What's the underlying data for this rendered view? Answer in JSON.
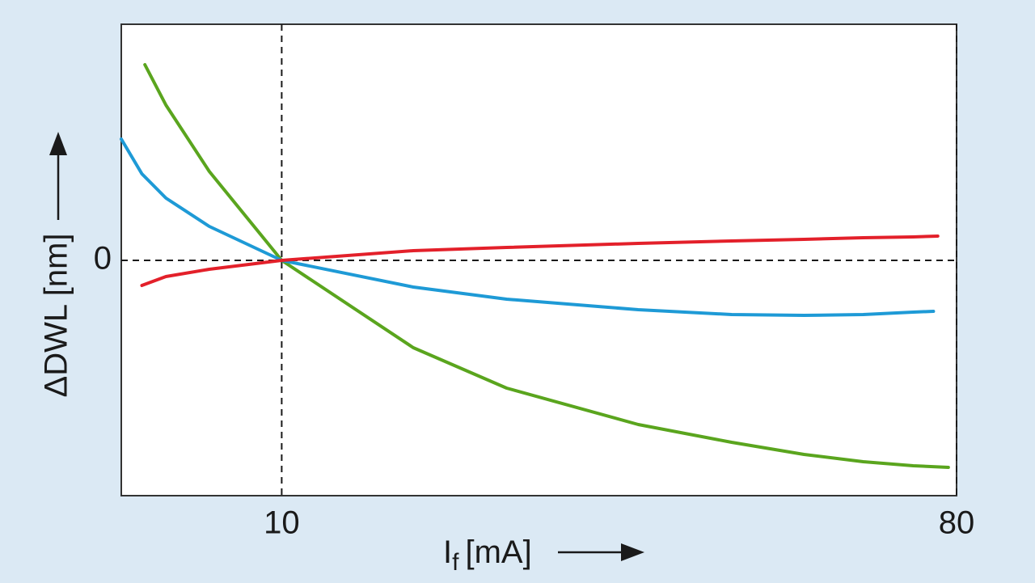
{
  "chart_data": {
    "type": "line",
    "x_label": {
      "symbol": "I",
      "subscript": "f",
      "unit": "[mA]"
    },
    "y_label": "ΔDWL [nm]",
    "xscale": "log",
    "xlim": [
      6.1,
      80
    ],
    "xticks": [
      10,
      80
    ],
    "ylim": [
      -2.91,
      2.92
    ],
    "yticks": [
      0
    ],
    "reference_lines": true,
    "series": [
      {
        "color": "#5aa51e",
        "x": [
          6.56,
          7,
          8,
          10,
          15,
          20,
          30,
          40,
          50,
          60,
          70,
          78
        ],
        "values": [
          2.42,
          1.92,
          1.1,
          0,
          -1.08,
          -1.58,
          -2.03,
          -2.25,
          -2.4,
          -2.49,
          -2.54,
          -2.56
        ]
      },
      {
        "color": "#1e9ad6",
        "x": [
          6.1,
          6.5,
          7,
          8,
          10,
          15,
          20,
          30,
          40,
          50,
          60,
          70,
          74.5
        ],
        "values": [
          1.5,
          1.07,
          0.77,
          0.42,
          0,
          -0.33,
          -0.48,
          -0.61,
          -0.67,
          -0.68,
          -0.67,
          -0.64,
          -0.63
        ]
      },
      {
        "color": "#e3202a",
        "x": [
          6.5,
          7,
          8,
          10,
          15,
          20,
          30,
          40,
          50,
          60,
          70,
          75.5
        ],
        "values": [
          -0.31,
          -0.2,
          -0.11,
          0,
          0.12,
          0.16,
          0.21,
          0.24,
          0.26,
          0.28,
          0.29,
          0.3
        ]
      }
    ]
  }
}
